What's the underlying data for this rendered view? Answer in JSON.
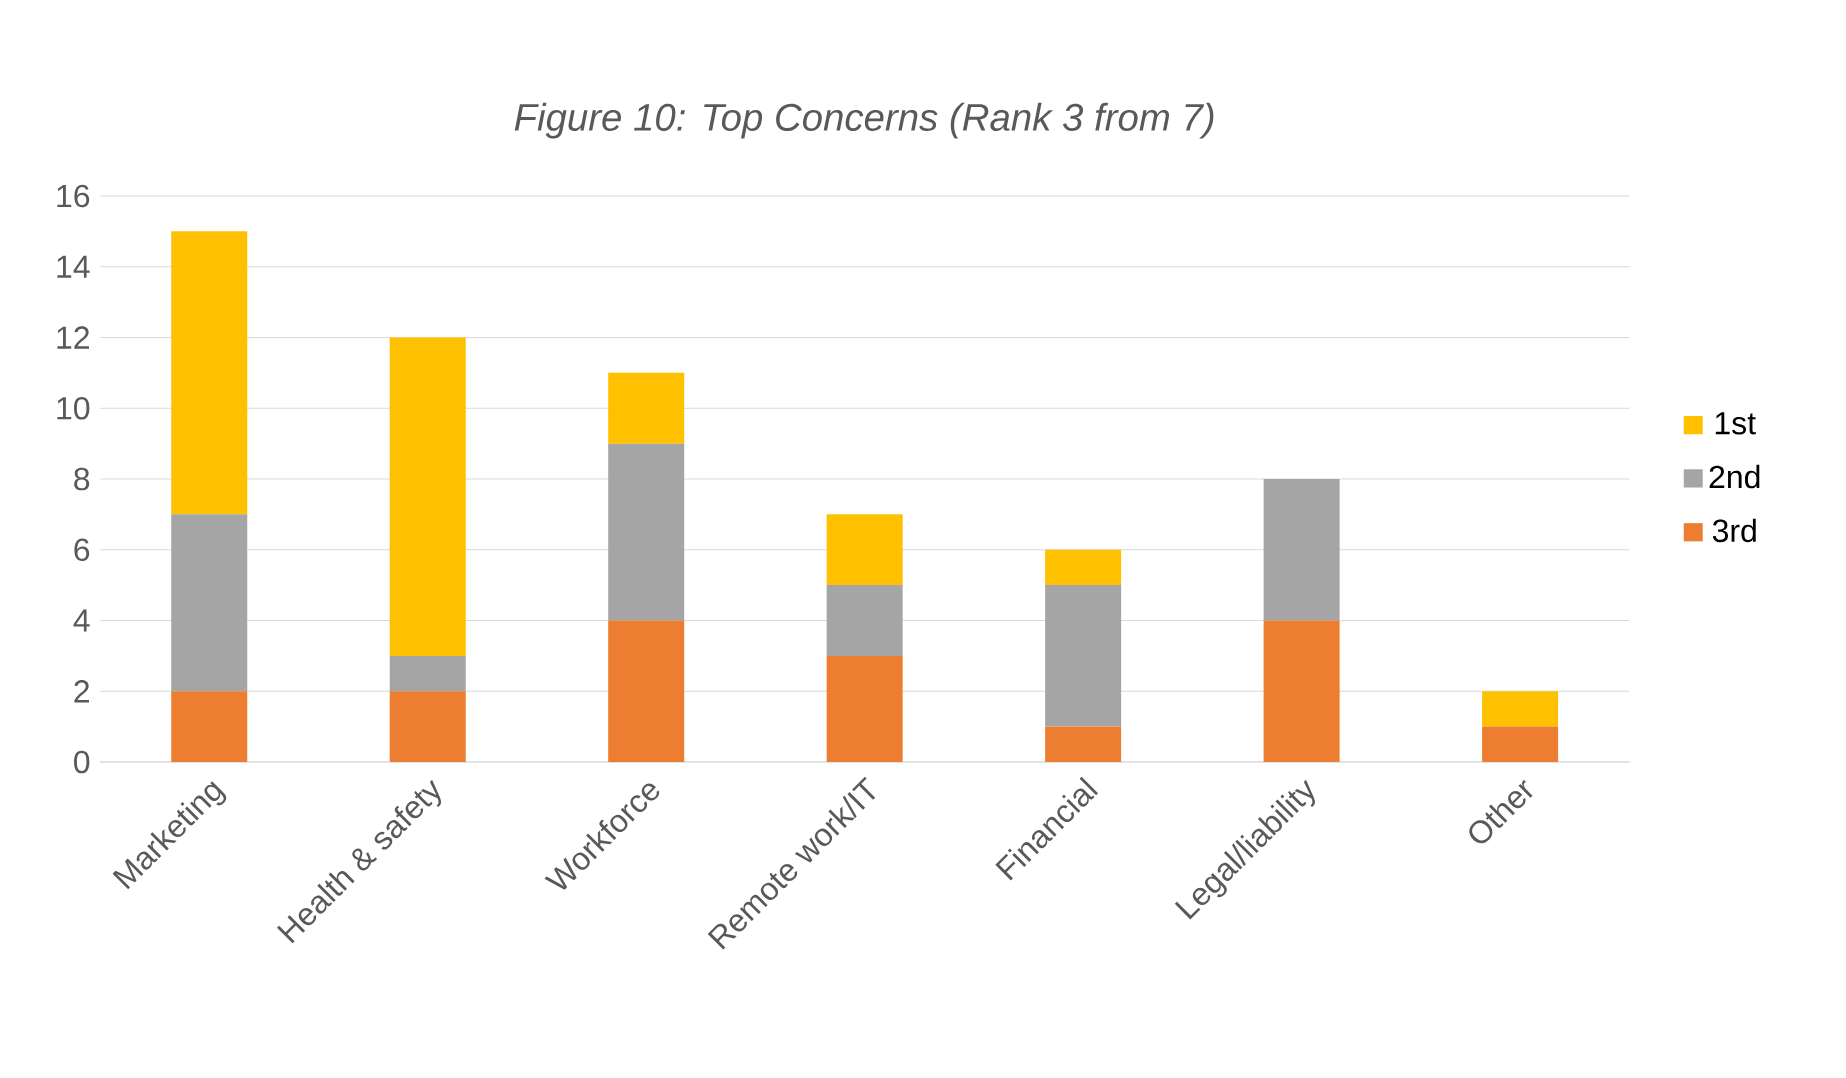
{
  "chart_data": {
    "type": "bar",
    "title": "Figure 10: Top Concerns (Rank 3 from 7)",
    "categories": [
      "Marketing",
      "Health & safety",
      "Workforce",
      "Remote work/IT",
      "Financial",
      "Legal/liability",
      "Other"
    ],
    "series": [
      {
        "name": "3rd",
        "color": "#ed7d31",
        "values": [
          2,
          2,
          4,
          3,
          1,
          4,
          1
        ]
      },
      {
        "name": "2nd",
        "color": "#a5a5a5",
        "values": [
          5,
          1,
          5,
          2,
          4,
          4,
          0
        ]
      },
      {
        "name": "1st",
        "color": "#ffc000",
        "values": [
          8,
          9,
          2,
          2,
          1,
          0,
          1
        ]
      }
    ],
    "stacked": true,
    "ylim": [
      0,
      16
    ],
    "yticks": [
      0,
      2,
      4,
      6,
      8,
      10,
      12,
      14,
      16
    ],
    "grid": "y",
    "legend": "right"
  }
}
